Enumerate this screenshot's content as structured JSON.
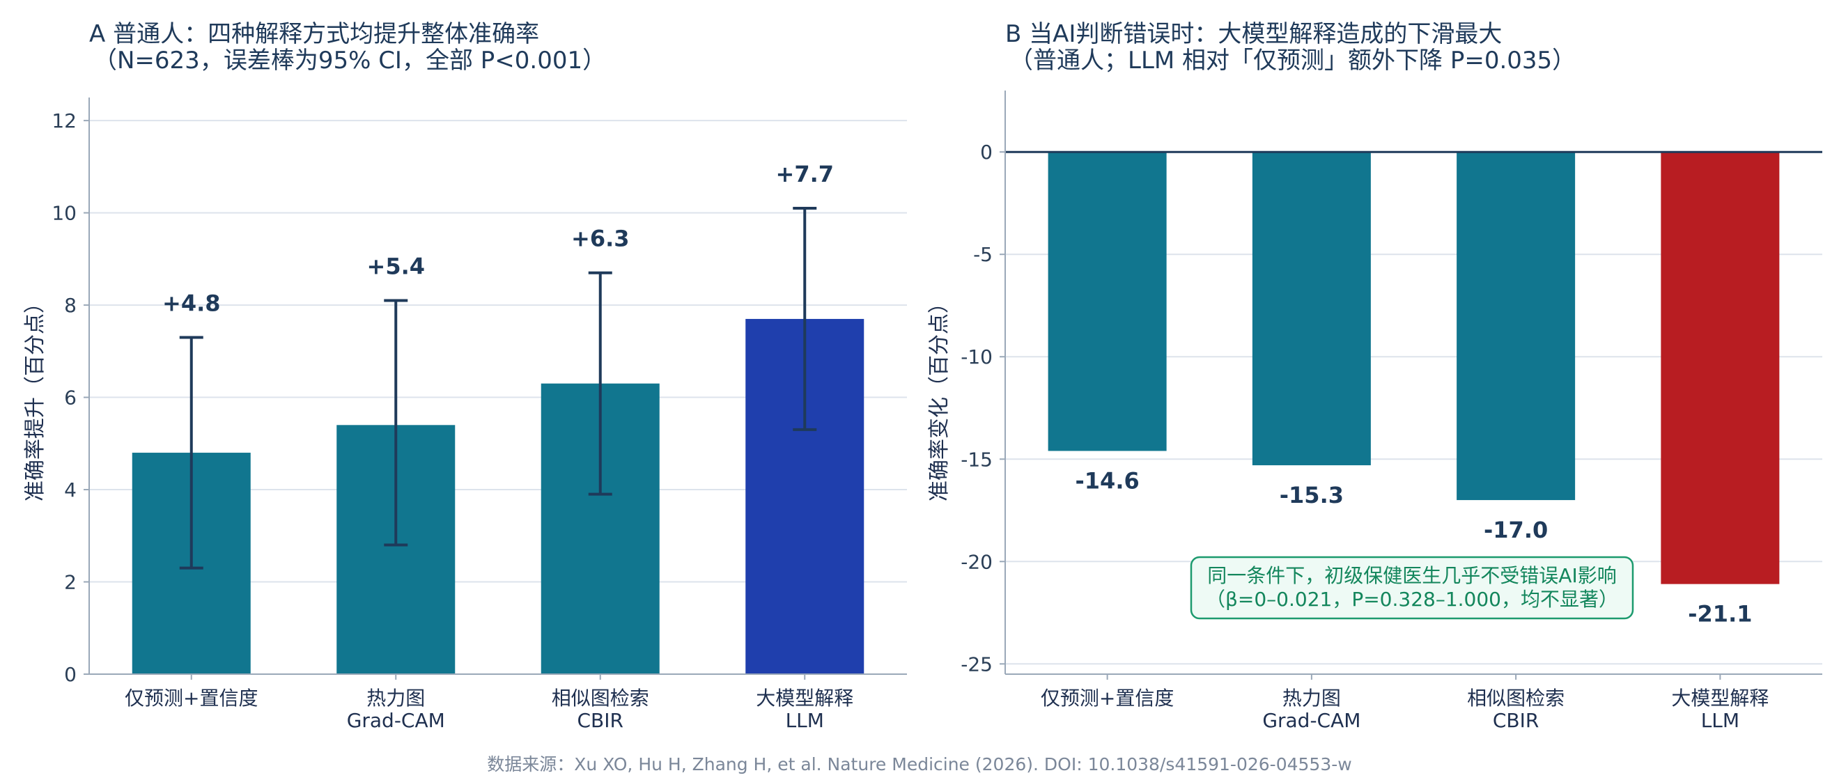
{
  "chart_data": [
    {
      "type": "bar",
      "panel": "A",
      "title_line1": "A  普通人：四种解释方式均提升整体准确率",
      "title_line2": "（N=623，误差棒为95% CI，全部 P<0.001）",
      "ylabel": "准确率提升（百分点）",
      "ylim": [
        0,
        12.5
      ],
      "yticks": [
        0,
        2,
        4,
        6,
        8,
        10,
        12
      ],
      "grid": true,
      "categories": [
        {
          "line1": "仅预测+置信度",
          "line2": ""
        },
        {
          "line1": "热力图",
          "line2": "Grad-CAM"
        },
        {
          "line1": "相似图检索",
          "line2": "CBIR"
        },
        {
          "line1": "大模型解释",
          "line2": "LLM"
        }
      ],
      "values": [
        4.8,
        5.4,
        6.3,
        7.7
      ],
      "value_labels": [
        "+4.8",
        "+5.4",
        "+6.3",
        "+7.7"
      ],
      "ci_low": [
        2.3,
        2.8,
        3.9,
        5.3
      ],
      "ci_high": [
        7.3,
        8.1,
        8.7,
        10.1
      ],
      "colors": [
        "#11768f",
        "#11768f",
        "#11768f",
        "#1f3fad"
      ]
    },
    {
      "type": "bar",
      "panel": "B",
      "title_line1": "B  当AI判断错误时：大模型解释造成的下滑最大",
      "title_line2": "（普通人；LLM 相对「仅预测」额外下降 P=0.035）",
      "ylabel": "准确率变化（百分点）",
      "ylim": [
        -25.5,
        3
      ],
      "yticks": [
        0,
        -5,
        -10,
        -15,
        -20,
        -25
      ],
      "grid": true,
      "categories": [
        {
          "line1": "仅预测+置信度",
          "line2": ""
        },
        {
          "line1": "热力图",
          "line2": "Grad-CAM"
        },
        {
          "line1": "相似图检索",
          "line2": "CBIR"
        },
        {
          "line1": "大模型解释",
          "line2": "LLM"
        }
      ],
      "values": [
        -14.6,
        -15.3,
        -17.0,
        -21.1
      ],
      "value_labels": [
        "-14.6",
        "-15.3",
        "-17.0",
        "-21.1"
      ],
      "colors": [
        "#11768f",
        "#11768f",
        "#11768f",
        "#b81d22"
      ],
      "annotation": {
        "line1": "同一条件下，初级保健医生几乎不受错误AI影响",
        "line2": "（β=0–0.021，P=0.328–1.000，均不显著）"
      }
    }
  ],
  "source": "数据来源：Xu XO, Hu H, Zhang H, et al. Nature Medicine (2026). DOI: 10.1038/s41591-026-04553-w"
}
